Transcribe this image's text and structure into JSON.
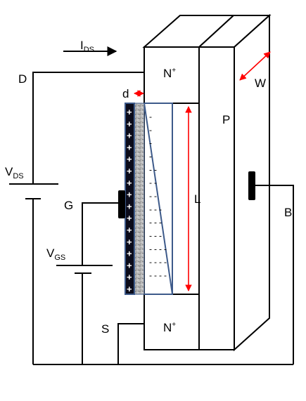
{
  "labels": {
    "ids_main": "I",
    "ids_sub": "DS",
    "drain": "D",
    "gate": "G",
    "source": "S",
    "body": "B",
    "vds_main": "V",
    "vds_sub": "DS",
    "vgs_main": "V",
    "vgs_sub": "GS",
    "n_main": "N",
    "n_sup": "+",
    "substrate": "P",
    "oxide_thickness": "d",
    "channel_length": "L",
    "width": "W",
    "plus_charge": "+",
    "minus_charge": "-"
  },
  "counts": {
    "gate_plus_signs": 16,
    "channel_minus_rows": 13
  },
  "colors": {
    "line": "#000000",
    "dimension_arrow": "#ff0000",
    "channel_outline": "#3d5a8a",
    "gate_electrode": "#0b0b1a",
    "oxide_fill": "#a9a9a9",
    "contact_pad": "#000000"
  }
}
